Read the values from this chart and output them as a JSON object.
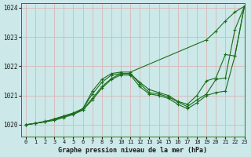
{
  "title": "Graphe pression niveau de la mer (hPa)",
  "bg_color": "#cce8e8",
  "grid_color": "#d8b8b8",
  "line_color": "#1a6e1a",
  "xlim": [
    -0.5,
    23
  ],
  "ylim": [
    1019.6,
    1024.15
  ],
  "yticks": [
    1020,
    1021,
    1022,
    1023,
    1024
  ],
  "xticks": [
    0,
    1,
    2,
    3,
    4,
    5,
    6,
    7,
    8,
    9,
    10,
    11,
    12,
    13,
    14,
    15,
    16,
    17,
    18,
    19,
    20,
    21,
    22,
    23
  ],
  "series": [
    {
      "x": [
        0,
        1,
        2,
        3,
        4,
        5,
        6,
        7,
        8,
        9,
        10,
        11,
        19,
        20,
        21,
        22,
        23
      ],
      "y": [
        1020.0,
        1020.05,
        1020.1,
        1020.2,
        1020.3,
        1020.4,
        1020.55,
        1021.15,
        1021.55,
        1021.75,
        1021.8,
        1021.8,
        1022.9,
        1023.2,
        1023.55,
        1023.85,
        1024.05
      ]
    },
    {
      "x": [
        0,
        1,
        2,
        3,
        4,
        5,
        6,
        7,
        8,
        9,
        10,
        11,
        12,
        13,
        14,
        15,
        16,
        17,
        18,
        19,
        20,
        21,
        22,
        23
      ],
      "y": [
        1020.0,
        1020.05,
        1020.1,
        1020.2,
        1020.3,
        1020.4,
        1020.55,
        1021.05,
        1021.45,
        1021.7,
        1021.75,
        1021.75,
        1021.45,
        1021.2,
        1021.1,
        1021.0,
        1020.8,
        1020.7,
        1021.0,
        1021.5,
        1021.6,
        1022.4,
        1022.35,
        1024.05
      ]
    },
    {
      "x": [
        0,
        1,
        2,
        3,
        4,
        5,
        6,
        7,
        8,
        9,
        10,
        11,
        12,
        13,
        14,
        15,
        16,
        17,
        18,
        19,
        20,
        21,
        22,
        23
      ],
      "y": [
        1020.0,
        1020.05,
        1020.1,
        1020.15,
        1020.25,
        1020.35,
        1020.5,
        1020.85,
        1021.25,
        1021.55,
        1021.7,
        1021.7,
        1021.3,
        1021.05,
        1021.0,
        1020.9,
        1020.7,
        1020.55,
        1020.75,
        1021.0,
        1021.1,
        1021.15,
        1022.35,
        1024.05
      ]
    },
    {
      "x": [
        0,
        1,
        2,
        3,
        4,
        5,
        6,
        7,
        8,
        9,
        10,
        11,
        12,
        13,
        14,
        15,
        16,
        17,
        18,
        19,
        20,
        21,
        22,
        23
      ],
      "y": [
        1020.0,
        1020.05,
        1020.12,
        1020.18,
        1020.28,
        1020.38,
        1020.52,
        1020.9,
        1021.3,
        1021.58,
        1021.75,
        1021.75,
        1021.4,
        1021.1,
        1021.05,
        1020.95,
        1020.78,
        1020.62,
        1020.85,
        1021.05,
        1021.55,
        1021.6,
        1023.25,
        1024.05
      ]
    }
  ]
}
